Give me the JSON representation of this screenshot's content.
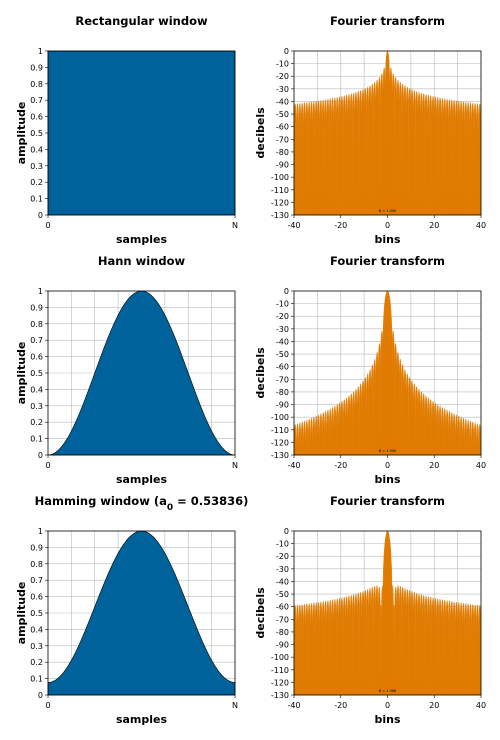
{
  "colors": {
    "window_fill": "#00629b",
    "spectrum_fill": "#e07b00",
    "grid": "#b9b9b9"
  },
  "chart_data": [
    {
      "type": "area",
      "title": "Rectangular window",
      "xlabel": "samples",
      "ylabel": "amplitude",
      "x_ticks": [
        "0",
        "N"
      ],
      "y_ticks": [
        "0",
        "0.1",
        "0.2",
        "0.3",
        "0.4",
        "0.5",
        "0.6",
        "0.7",
        "0.8",
        "0.9",
        "1"
      ],
      "ylim": [
        0,
        1
      ],
      "window": "rectangular",
      "x": [
        0,
        0.1,
        0.2,
        0.3,
        0.4,
        0.5,
        0.6,
        0.7,
        0.8,
        0.9,
        1
      ],
      "values": [
        1,
        1,
        1,
        1,
        1,
        1,
        1,
        1,
        1,
        1,
        1
      ]
    },
    {
      "type": "area",
      "title": "Fourier transform",
      "xlabel": "bins",
      "ylabel": "decibels",
      "x_ticks": [
        "-40",
        "-20",
        "0",
        "20",
        "40"
      ],
      "y_ticks": [
        "0",
        "-10",
        "-20",
        "-30",
        "-40",
        "-50",
        "-60",
        "-70",
        "-80",
        "-90",
        "-100",
        "-110",
        "-120",
        "-130"
      ],
      "xlim": [
        -40,
        40
      ],
      "ylim": [
        -130,
        0
      ],
      "annotation": "B = 1.000",
      "window": "rectangular",
      "x": [
        -40,
        -30,
        -20,
        -10,
        -5,
        -2,
        -1,
        0,
        1,
        2,
        5,
        10,
        20,
        30,
        40
      ],
      "values": [
        -44,
        -42,
        -39,
        -33,
        -27,
        -19,
        -12,
        0,
        -12,
        -19,
        -27,
        -33,
        -39,
        -42,
        -44
      ]
    },
    {
      "type": "area",
      "title": "Hann window",
      "xlabel": "samples",
      "ylabel": "amplitude",
      "x_ticks": [
        "0",
        "N"
      ],
      "y_ticks": [
        "0",
        "0.1",
        "0.2",
        "0.3",
        "0.4",
        "0.5",
        "0.6",
        "0.7",
        "0.8",
        "0.9",
        "1"
      ],
      "ylim": [
        0,
        1
      ],
      "window": "hann",
      "x": [
        0,
        0.1,
        0.2,
        0.3,
        0.4,
        0.5,
        0.6,
        0.7,
        0.8,
        0.9,
        1
      ],
      "values": [
        0,
        0.1,
        0.35,
        0.65,
        0.9,
        1,
        0.9,
        0.65,
        0.35,
        0.1,
        0
      ]
    },
    {
      "type": "area",
      "title": "Fourier transform",
      "xlabel": "bins",
      "ylabel": "decibels",
      "x_ticks": [
        "-40",
        "-20",
        "0",
        "20",
        "40"
      ],
      "y_ticks": [
        "0",
        "-10",
        "-20",
        "-30",
        "-40",
        "-50",
        "-60",
        "-70",
        "-80",
        "-90",
        "-100",
        "-110",
        "-120",
        "-130"
      ],
      "xlim": [
        -40,
        40
      ],
      "ylim": [
        -130,
        0
      ],
      "annotation": "B = 1.500",
      "window": "hann",
      "x": [
        -40,
        -30,
        -20,
        -10,
        -5,
        -3,
        -2,
        0,
        2,
        3,
        5,
        10,
        20,
        30,
        40
      ],
      "values": [
        -104,
        -97,
        -87,
        -70,
        -55,
        -45,
        -33,
        0,
        -33,
        -45,
        -55,
        -70,
        -87,
        -97,
        -104
      ]
    },
    {
      "type": "area",
      "title": "Hamming window (a",
      "title_sub": "0",
      "title_tail": " = 0.53836)",
      "xlabel": "samples",
      "ylabel": "amplitude",
      "x_ticks": [
        "0",
        "N"
      ],
      "y_ticks": [
        "0",
        "0.1",
        "0.2",
        "0.3",
        "0.4",
        "0.5",
        "0.6",
        "0.7",
        "0.8",
        "0.9",
        "1"
      ],
      "ylim": [
        0,
        1
      ],
      "window": "hamming",
      "a0": 0.53836,
      "x": [
        0,
        0.1,
        0.2,
        0.3,
        0.4,
        0.5,
        0.6,
        0.7,
        0.8,
        0.9,
        1
      ],
      "values": [
        0.08,
        0.17,
        0.4,
        0.68,
        0.91,
        1,
        0.91,
        0.68,
        0.4,
        0.17,
        0.08
      ]
    },
    {
      "type": "area",
      "title": "Fourier transform",
      "xlabel": "bins",
      "ylabel": "decibels",
      "x_ticks": [
        "-40",
        "-20",
        "0",
        "20",
        "40"
      ],
      "y_ticks": [
        "0",
        "-10",
        "-20",
        "-30",
        "-40",
        "-50",
        "-60",
        "-70",
        "-80",
        "-90",
        "-100",
        "-110",
        "-120",
        "-130"
      ],
      "xlim": [
        -40,
        40
      ],
      "ylim": [
        -130,
        0
      ],
      "annotation": "B = 1.368",
      "window": "hamming",
      "x": [
        -40,
        -30,
        -20,
        -10,
        -5,
        -3,
        -2,
        0,
        2,
        3,
        5,
        10,
        20,
        30,
        40
      ],
      "values": [
        -60,
        -57,
        -54,
        -51,
        -46,
        -44,
        -40,
        0,
        -40,
        -44,
        -46,
        -51,
        -54,
        -57,
        -60
      ]
    }
  ]
}
